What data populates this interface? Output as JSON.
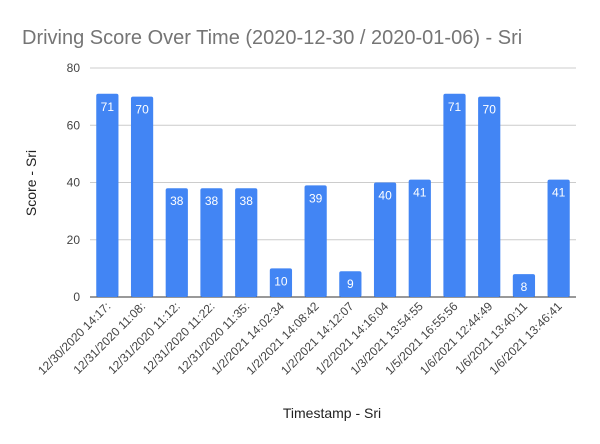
{
  "chart_data": {
    "type": "bar",
    "title": "Driving Score Over Time (2020-12-30 / 2020-01-06) - Sri",
    "xlabel": "Timestamp - Sri",
    "ylabel": "Score - Sri",
    "ylim": [
      0,
      80
    ],
    "yticks": [
      0,
      20,
      40,
      60,
      80
    ],
    "grid": true,
    "legend": "none",
    "bar_color": "#4285F4",
    "categories": [
      "12/30/2020 14:17:",
      "12/31/2020 11:08:",
      "12/31/2020 11:12:",
      "12/31/2020 11:22:",
      "12/31/2020 11:35:",
      "1/2/2021 14:02:34",
      "1/2/2021 14:08:42",
      "1/2/2021 14:12:07",
      "1/2/2021 14:16:04",
      "1/3/2021 13:54:55",
      "1/5/2021 16:55:56",
      "1/6/2021 12:44:49",
      "1/6/2021 13:40:11",
      "1/6/2021 13:46:41"
    ],
    "values": [
      71,
      70,
      38,
      38,
      38,
      10,
      39,
      9,
      40,
      41,
      71,
      70,
      8,
      41
    ]
  }
}
